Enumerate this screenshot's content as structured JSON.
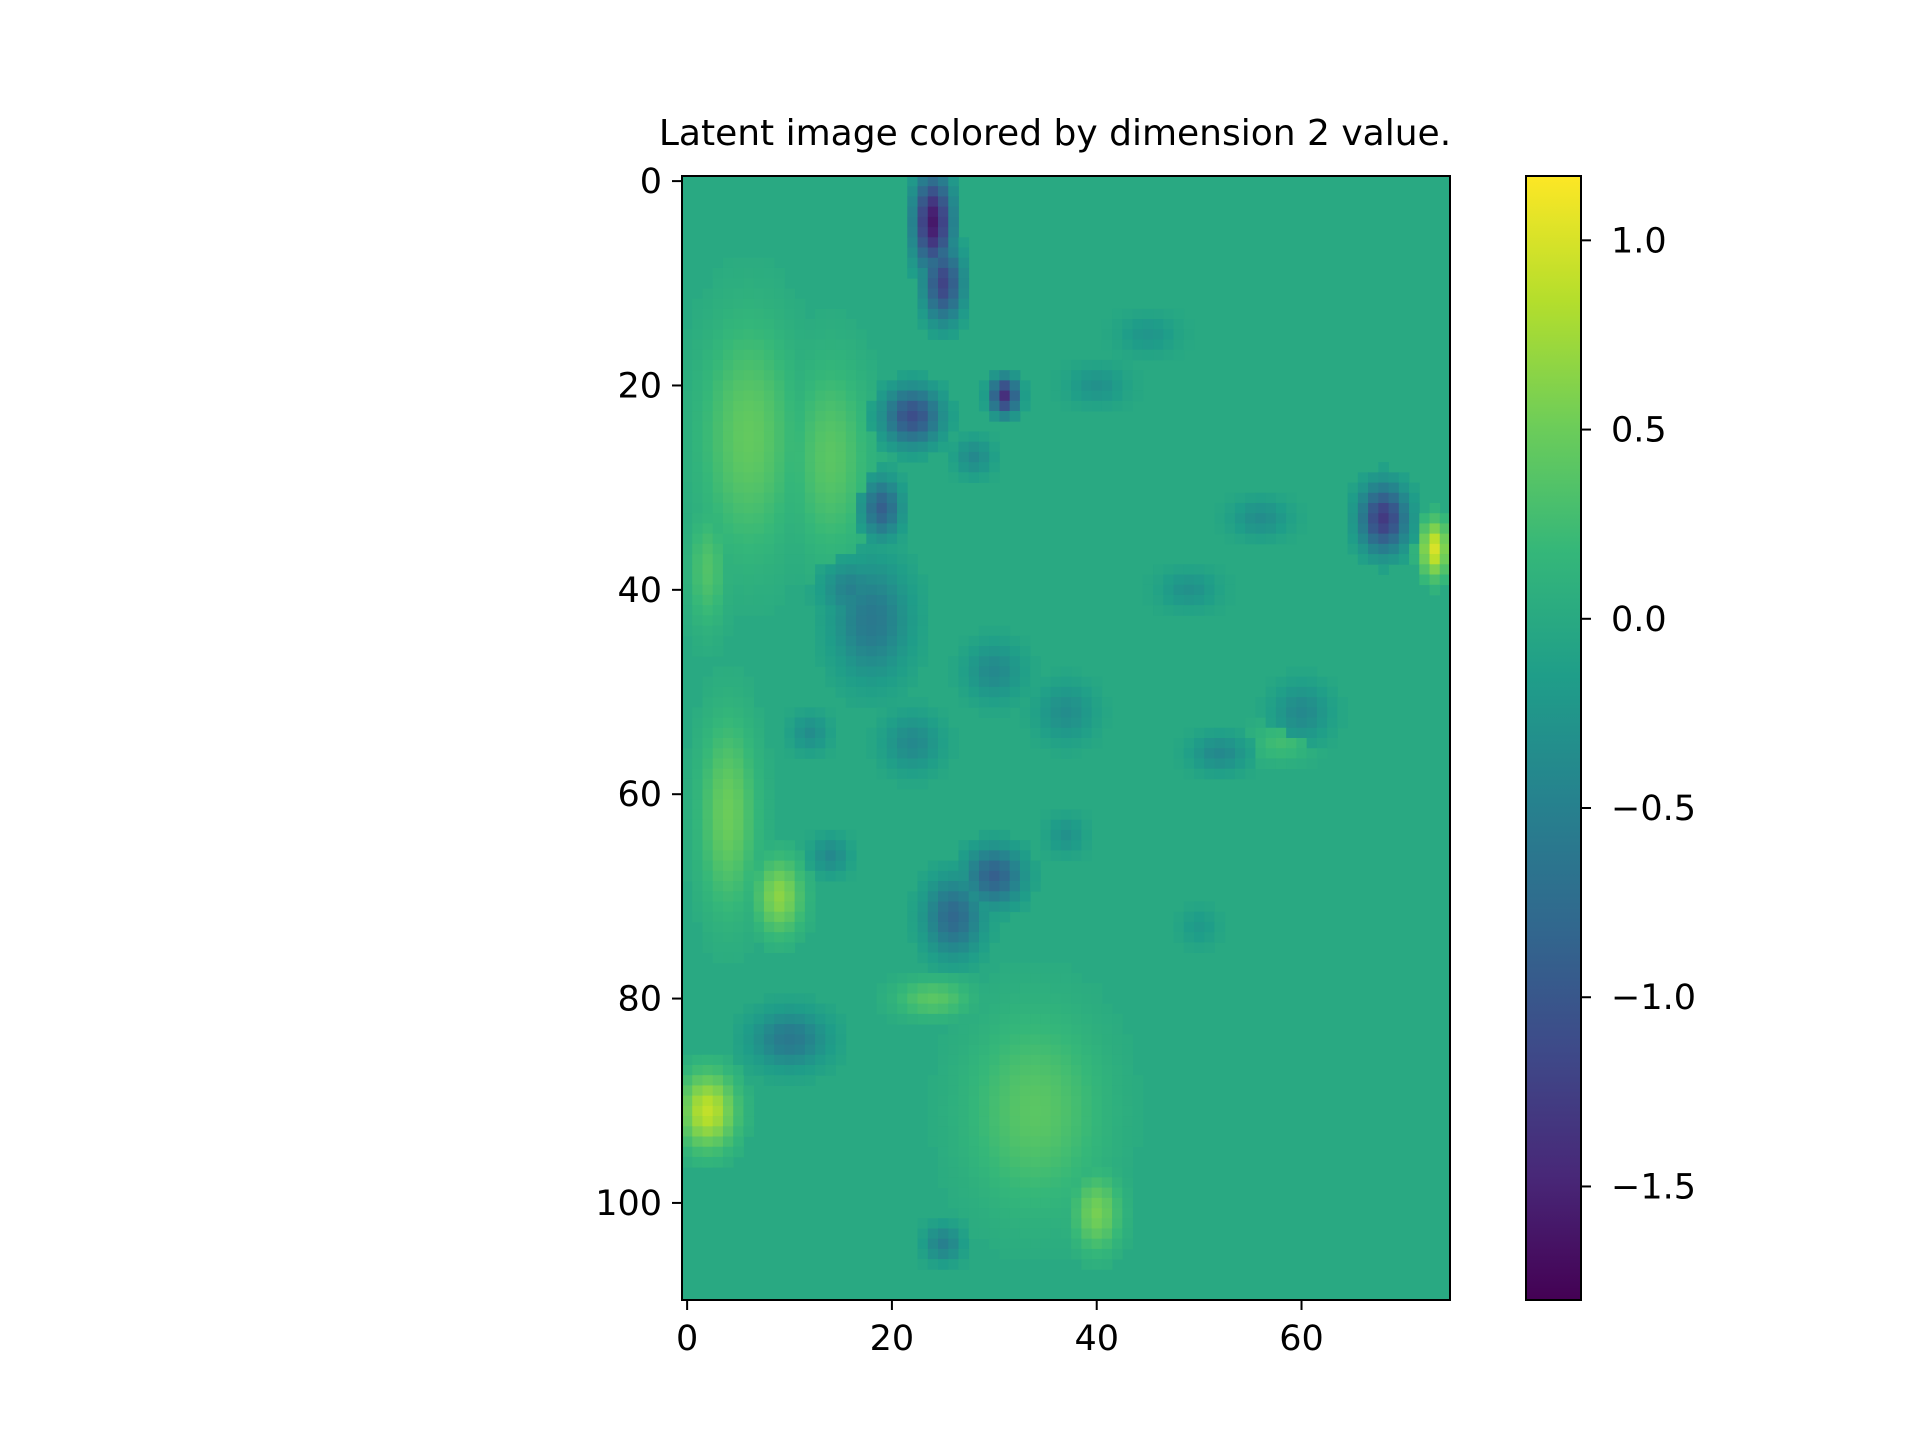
{
  "chart_data": {
    "type": "heatmap",
    "title": "Latent image colored by dimension 2 value.",
    "xlabel": "",
    "ylabel": "",
    "grid": false,
    "colormap": "viridis",
    "image_shape": {
      "rows": 110,
      "cols": 75
    },
    "xlim": [
      -0.5,
      74.5
    ],
    "ylim": [
      109.5,
      -0.5
    ],
    "x_ticks": [
      0,
      20,
      40,
      60
    ],
    "x_tick_labels": [
      "0",
      "20",
      "40",
      "60"
    ],
    "y_ticks": [
      0,
      20,
      40,
      60,
      80,
      100
    ],
    "y_tick_labels": [
      "0",
      "20",
      "40",
      "60",
      "80",
      "100"
    ],
    "background_value": 0.0,
    "colorbar": {
      "vmin": -1.8,
      "vmax": 1.17,
      "ticks": [
        1.0,
        0.5,
        0.0,
        -0.5,
        -1.0,
        -1.5
      ],
      "tick_labels": [
        "1.0",
        "0.5",
        "0.0",
        "−0.5",
        "−1.0",
        "−1.5"
      ]
    },
    "regions": [
      {
        "row": 4,
        "col": 24,
        "radius_x": 2,
        "radius_y": 5,
        "value": -1.6
      },
      {
        "row": 10,
        "col": 25,
        "radius_x": 2,
        "radius_y": 4,
        "value": -1.2
      },
      {
        "row": 21,
        "col": 31,
        "radius_x": 1.5,
        "radius_y": 2,
        "value": -1.4
      },
      {
        "row": 23,
        "col": 22,
        "radius_x": 3,
        "radius_y": 3,
        "value": -1.1
      },
      {
        "row": 32,
        "col": 19,
        "radius_x": 2,
        "radius_y": 3,
        "value": -0.9
      },
      {
        "row": 33,
        "col": 68,
        "radius_x": 2.5,
        "radius_y": 3.5,
        "value": -1.3
      },
      {
        "row": 36,
        "col": 73,
        "radius_x": 1.5,
        "radius_y": 3,
        "value": 1.0
      },
      {
        "row": 25,
        "col": 6,
        "radius_x": 5,
        "radius_y": 12,
        "value": 0.45
      },
      {
        "row": 27,
        "col": 14,
        "radius_x": 4,
        "radius_y": 10,
        "value": 0.4
      },
      {
        "row": 62,
        "col": 4,
        "radius_x": 3,
        "radius_y": 10,
        "value": 0.5
      },
      {
        "row": 70,
        "col": 9,
        "radius_x": 2.5,
        "radius_y": 4,
        "value": 0.65
      },
      {
        "row": 91,
        "col": 2,
        "radius_x": 3,
        "radius_y": 4,
        "value": 0.9
      },
      {
        "row": 91,
        "col": 34,
        "radius_x": 7,
        "radius_y": 10,
        "value": 0.4
      },
      {
        "row": 101,
        "col": 40,
        "radius_x": 2.5,
        "radius_y": 4,
        "value": 0.55
      },
      {
        "row": 80,
        "col": 24,
        "radius_x": 4,
        "radius_y": 2,
        "value": 0.4
      },
      {
        "row": 68,
        "col": 30,
        "radius_x": 3,
        "radius_y": 3,
        "value": -0.9
      },
      {
        "row": 72,
        "col": 26,
        "radius_x": 3,
        "radius_y": 4,
        "value": -0.8
      },
      {
        "row": 84,
        "col": 10,
        "radius_x": 4,
        "radius_y": 3,
        "value": -0.6
      },
      {
        "row": 43,
        "col": 18,
        "radius_x": 4,
        "radius_y": 6,
        "value": -0.6
      },
      {
        "row": 40,
        "col": 16,
        "radius_x": 3,
        "radius_y": 3,
        "value": -0.5
      },
      {
        "row": 48,
        "col": 30,
        "radius_x": 3,
        "radius_y": 3,
        "value": -0.4
      },
      {
        "row": 52,
        "col": 37,
        "radius_x": 3,
        "radius_y": 3,
        "value": -0.35
      },
      {
        "row": 55,
        "col": 22,
        "radius_x": 3,
        "radius_y": 3,
        "value": -0.4
      },
      {
        "row": 54,
        "col": 12,
        "radius_x": 2,
        "radius_y": 2,
        "value": -0.35
      },
      {
        "row": 66,
        "col": 14,
        "radius_x": 2,
        "radius_y": 2,
        "value": -0.4
      },
      {
        "row": 52,
        "col": 60,
        "radius_x": 3,
        "radius_y": 3,
        "value": -0.4
      },
      {
        "row": 56,
        "col": 52,
        "radius_x": 3,
        "radius_y": 2,
        "value": -0.4
      },
      {
        "row": 33,
        "col": 56,
        "radius_x": 3,
        "radius_y": 2,
        "value": -0.35
      },
      {
        "row": 40,
        "col": 49,
        "radius_x": 3,
        "radius_y": 2,
        "value": -0.3
      },
      {
        "row": 20,
        "col": 40,
        "radius_x": 3,
        "radius_y": 2,
        "value": -0.3
      },
      {
        "row": 15,
        "col": 45,
        "radius_x": 3,
        "radius_y": 2,
        "value": -0.25
      },
      {
        "row": 27,
        "col": 28,
        "radius_x": 2,
        "radius_y": 2,
        "value": -0.4
      },
      {
        "row": 104,
        "col": 25,
        "radius_x": 2,
        "radius_y": 2,
        "value": -0.5
      },
      {
        "row": 64,
        "col": 37,
        "radius_x": 2,
        "radius_y": 2,
        "value": -0.3
      },
      {
        "row": 73,
        "col": 50,
        "radius_x": 2,
        "radius_y": 2,
        "value": -0.2
      },
      {
        "row": 55,
        "col": 58,
        "radius_x": 3,
        "radius_y": 2,
        "value": 0.25
      },
      {
        "row": 38,
        "col": 2,
        "radius_x": 2,
        "radius_y": 6,
        "value": 0.35
      }
    ]
  }
}
